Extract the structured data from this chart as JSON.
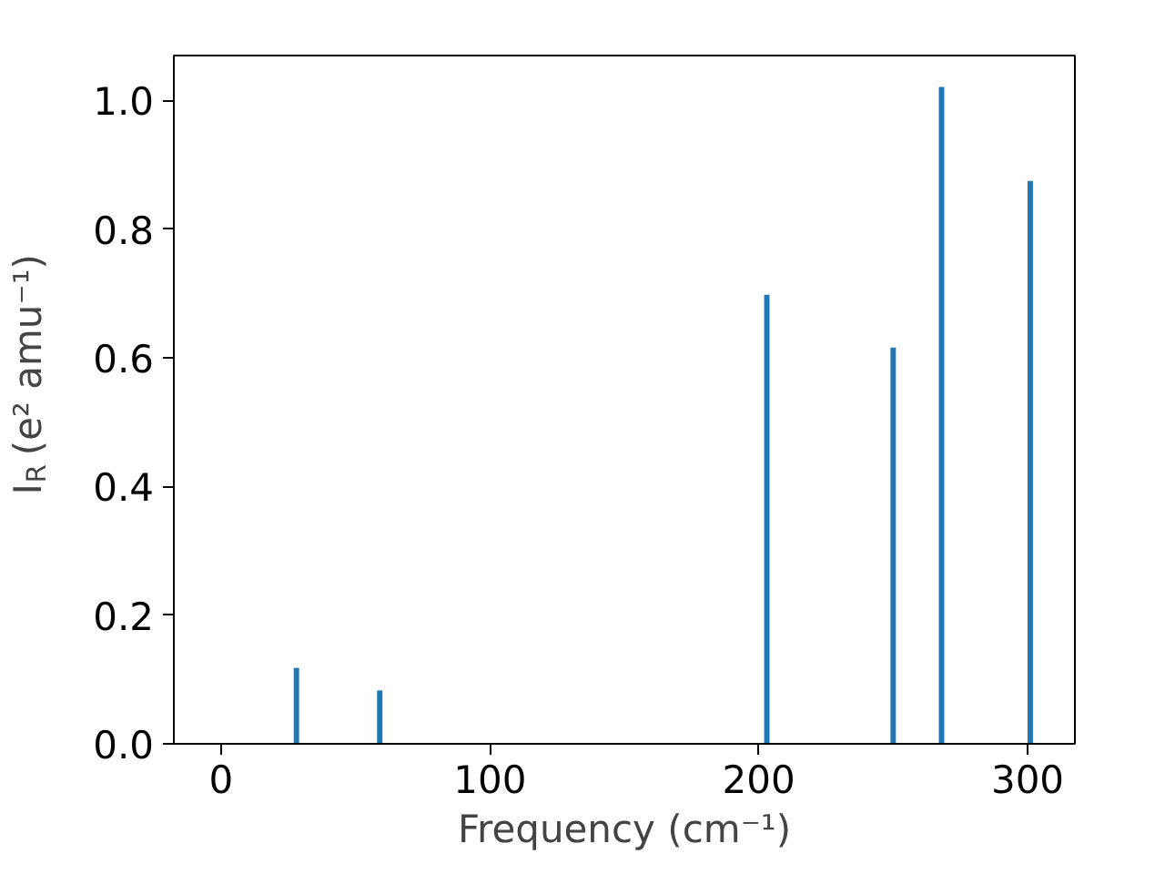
{
  "chart_data": {
    "type": "bar",
    "xlabel": "Frequency (cm⁻¹)",
    "ylabel": "I$_{R}$ (e² amu⁻¹)",
    "x": [
      28,
      59,
      203,
      250,
      268,
      301
    ],
    "values": [
      0.118,
      0.083,
      0.698,
      0.616,
      1.021,
      0.875
    ],
    "color": "#1f77b4",
    "xlim": [
      -17.6,
      317.6
    ],
    "xticks": [
      0,
      100,
      200,
      300
    ],
    "ylim": [
      0,
      1.07
    ],
    "yticks": [
      {
        "value": 0,
        "label": "0.0"
      },
      {
        "value": 0.2,
        "label": "0.2"
      },
      {
        "value": 0.4,
        "label": "0.4"
      },
      {
        "value": 0.6,
        "label": "0.6"
      },
      {
        "value": 0.8,
        "label": "0.8"
      },
      {
        "value": 1.0,
        "label": "1.0"
      }
    ],
    "grid": false
  }
}
